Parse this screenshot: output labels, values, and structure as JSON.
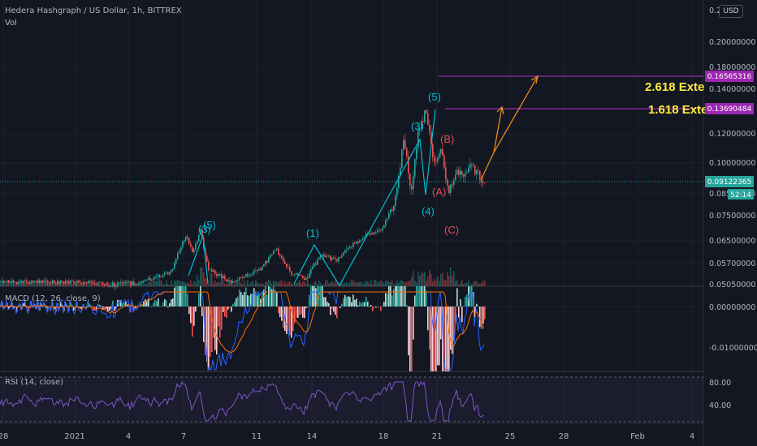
{
  "header": {
    "symbol_title": "Hedera Hashgraph / US Dollar, 1h, BITTREX",
    "volume_label": "Vol",
    "currency_badge": "USD"
  },
  "indicators": {
    "macd_label": "MACD (12, 26, close, 9)",
    "rsi_label": "RSI (14, close)"
  },
  "price_labels": {
    "last_price": "0.09122365",
    "countdown": "52:14",
    "ext_2618_price": "0.16565316",
    "ext_1618_price": "0.13690484"
  },
  "colors": {
    "background": "#131722",
    "up": "#26a69a",
    "down": "#ef5350",
    "wave": "#00bcd4",
    "correction": "#e84e4e",
    "projection": "#f7931a",
    "extension": "#9c27b0",
    "rsi": "#7e57c2",
    "extension_text": "#ffeb3b"
  },
  "chart_data": [
    {
      "type": "candlestick",
      "title": "Hedera Hashgraph / US Dollar, 1h, BITTREX",
      "y_ticks": [
        "0.2",
        "0.20000000",
        "0.18000000",
        "0.14000000",
        "0.12000000",
        "0.10000000",
        "0.08500000",
        "0.07500000",
        "0.06500000",
        "0.05700000",
        "0.05050000"
      ],
      "x_ticks": [
        "28",
        "2021",
        "4",
        "7",
        "11",
        "14",
        "18",
        "21",
        "25",
        "28",
        "Feb",
        "4"
      ],
      "price_path": [
        [
          "Jan 1",
          0.052
        ],
        [
          "Jan 3",
          0.051
        ],
        [
          "Jan 5",
          0.052
        ],
        [
          "Jan 7",
          0.055
        ],
        [
          "Jan 8",
          0.068
        ],
        [
          "Jan 8.5",
          0.062
        ],
        [
          "Jan 9",
          0.07
        ],
        [
          "Jan 9.5",
          0.056
        ],
        [
          "Jan 11",
          0.052
        ],
        [
          "Jan 13",
          0.056
        ],
        [
          "Jan 14",
          0.063
        ],
        [
          "Jan 15",
          0.055
        ],
        [
          "Jan 16",
          0.053
        ],
        [
          "Jan 17",
          0.061
        ],
        [
          "Jan 18",
          0.059
        ],
        [
          "Jan 19",
          0.064
        ],
        [
          "Jan 20",
          0.068
        ],
        [
          "Jan 21",
          0.07
        ],
        [
          "Jan 22",
          0.084
        ],
        [
          "Jan 22.5",
          0.118
        ],
        [
          "Jan 23",
          0.088
        ],
        [
          "Jan 23.5",
          0.123
        ],
        [
          "Jan 24",
          0.132
        ],
        [
          "Jan 24.5",
          0.102
        ],
        [
          "Jan 25",
          0.112
        ],
        [
          "Jan 25.5",
          0.086
        ],
        [
          "Jan 26",
          0.098
        ],
        [
          "Jan 26.5",
          0.093
        ],
        [
          "Jan 27",
          0.1
        ],
        [
          "Jan 27.5",
          0.095
        ],
        [
          "Jan 28",
          0.0912
        ]
      ],
      "annotations": [
        {
          "text": "(1)",
          "group": "impulse"
        },
        {
          "text": "(3)",
          "group": "impulse"
        },
        {
          "text": "(4)",
          "group": "impulse"
        },
        {
          "text": "(5)",
          "group": "impulse"
        },
        {
          "text": "(3)",
          "group": "impulse-left"
        },
        {
          "text": "(5)",
          "group": "impulse-left"
        },
        {
          "text": "(A)",
          "group": "correction"
        },
        {
          "text": "(B)",
          "group": "correction"
        },
        {
          "text": "(C)",
          "group": "correction"
        },
        {
          "text": "2.618 Exte",
          "group": "extension"
        },
        {
          "text": "1.618 Exte",
          "group": "extension"
        }
      ],
      "extension_levels": [
        {
          "label": "2.618 Exte",
          "value": 0.16565316
        },
        {
          "label": "1.618 Exte",
          "value": 0.13690484
        }
      ],
      "last_price": 0.09122365
    },
    {
      "type": "bar",
      "title": "MACD (12, 26, close, 9)",
      "y_ticks": [
        "0.00000000",
        "-0.01000000"
      ]
    },
    {
      "type": "line",
      "title": "RSI (14, close)",
      "y_ticks": [
        "80.00",
        "40.00"
      ]
    }
  ]
}
